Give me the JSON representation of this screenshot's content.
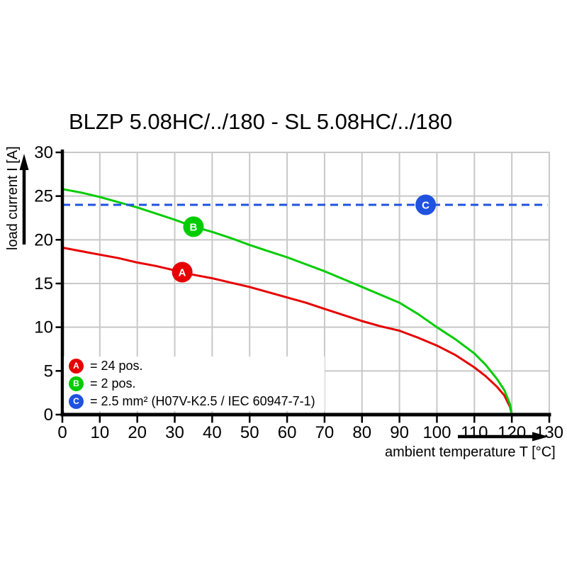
{
  "title": "BLZP 5.08HC/../180 - SL 5.08HC/../180",
  "colors": {
    "background": "#ffffff",
    "grid": "#c8c8c8",
    "axis": "#000000",
    "series_a_red": "#e60000",
    "series_b_green": "#00cc00",
    "series_c_blue": "#2052e0"
  },
  "legend": {
    "items": [
      {
        "letter": "A",
        "text": "= 24 pos.",
        "color": "#e60000"
      },
      {
        "letter": "B",
        "text": "= 2 pos.",
        "color": "#00cc00"
      },
      {
        "letter": "C",
        "text": "= 2.5 mm² (H07V-K2.5 / IEC 60947-7-1)",
        "color": "#2052e0"
      }
    ]
  },
  "chart_data": {
    "type": "line",
    "title": "BLZP 5.08HC/../180 - SL 5.08HC/../180",
    "xlabel": "ambient temperature T [°C]",
    "ylabel": "load current I [A]",
    "xlim": [
      0,
      130
    ],
    "ylim": [
      0,
      30
    ],
    "xticks": [
      0,
      10,
      20,
      30,
      40,
      50,
      60,
      70,
      80,
      90,
      100,
      110,
      120,
      130
    ],
    "yticks": [
      0,
      5,
      10,
      15,
      20,
      25,
      30
    ],
    "grid": true,
    "legend_position": "lower left",
    "series": [
      {
        "name": "A",
        "legend_label": "= 24 pos.",
        "color": "#e60000",
        "line_style": "solid",
        "line_width": 3,
        "marker": {
          "letter": "A",
          "x": 32,
          "y": 16.3
        },
        "points": [
          [
            0,
            19.1
          ],
          [
            5,
            18.7
          ],
          [
            10,
            18.3
          ],
          [
            15,
            17.9
          ],
          [
            20,
            17.4
          ],
          [
            25,
            17.0
          ],
          [
            30,
            16.5
          ],
          [
            35,
            16.0
          ],
          [
            40,
            15.6
          ],
          [
            45,
            15.1
          ],
          [
            50,
            14.6
          ],
          [
            55,
            14.0
          ],
          [
            60,
            13.4
          ],
          [
            65,
            12.8
          ],
          [
            70,
            12.1
          ],
          [
            75,
            11.4
          ],
          [
            80,
            10.7
          ],
          [
            85,
            10.1
          ],
          [
            90,
            9.6
          ],
          [
            95,
            8.8
          ],
          [
            100,
            7.9
          ],
          [
            105,
            6.8
          ],
          [
            110,
            5.4
          ],
          [
            113,
            4.4
          ],
          [
            116,
            3.2
          ],
          [
            118,
            2.2
          ],
          [
            119.5,
            0.9
          ],
          [
            120,
            0
          ]
        ]
      },
      {
        "name": "B",
        "legend_label": "= 2 pos.",
        "color": "#00cc00",
        "line_style": "solid",
        "line_width": 3,
        "marker": {
          "letter": "B",
          "x": 35,
          "y": 21.5
        },
        "points": [
          [
            0,
            25.8
          ],
          [
            5,
            25.4
          ],
          [
            10,
            24.9
          ],
          [
            15,
            24.3
          ],
          [
            20,
            23.7
          ],
          [
            25,
            23.0
          ],
          [
            30,
            22.3
          ],
          [
            35,
            21.5
          ],
          [
            40,
            20.9
          ],
          [
            45,
            20.2
          ],
          [
            50,
            19.4
          ],
          [
            55,
            18.7
          ],
          [
            60,
            18.0
          ],
          [
            65,
            17.2
          ],
          [
            70,
            16.4
          ],
          [
            75,
            15.5
          ],
          [
            80,
            14.6
          ],
          [
            85,
            13.7
          ],
          [
            90,
            12.8
          ],
          [
            95,
            11.5
          ],
          [
            100,
            10.0
          ],
          [
            105,
            8.6
          ],
          [
            110,
            7.0
          ],
          [
            113,
            5.7
          ],
          [
            116,
            4.1
          ],
          [
            118,
            2.8
          ],
          [
            119.5,
            1.2
          ],
          [
            120,
            0
          ]
        ]
      },
      {
        "name": "C",
        "legend_label": "= 2.5 mm² (H07V-K2.5 / IEC 60947-7-1)",
        "color": "#2052e0",
        "line_style": "dashed",
        "line_width": 3,
        "marker": {
          "letter": "C",
          "x": 97,
          "y": 24
        },
        "points": [
          [
            0,
            24
          ],
          [
            129.5,
            24
          ]
        ]
      }
    ]
  }
}
